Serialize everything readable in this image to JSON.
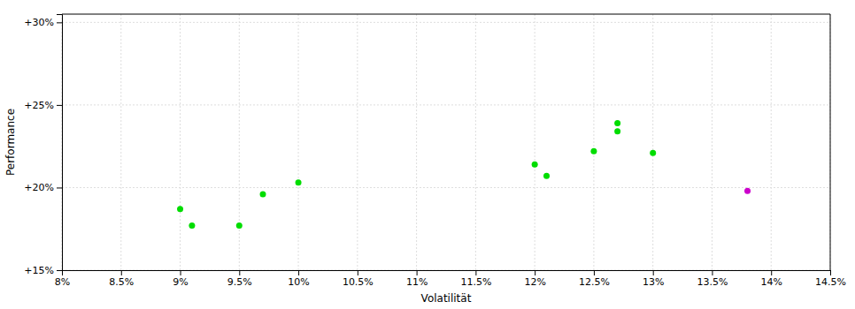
{
  "chart_data": {
    "type": "scatter",
    "xlabel": "Volatilität",
    "ylabel": "Performance",
    "xlim": [
      0.08,
      0.145
    ],
    "ylim": [
      0.15,
      0.305
    ],
    "xticks": [
      {
        "value": 0.08,
        "label": "8%"
      },
      {
        "value": 0.085,
        "label": "8.5%"
      },
      {
        "value": 0.09,
        "label": "9%"
      },
      {
        "value": 0.095,
        "label": "9.5%"
      },
      {
        "value": 0.1,
        "label": "10%"
      },
      {
        "value": 0.105,
        "label": "10.5%"
      },
      {
        "value": 0.11,
        "label": "11%"
      },
      {
        "value": 0.115,
        "label": "11.5%"
      },
      {
        "value": 0.12,
        "label": "12%"
      },
      {
        "value": 0.125,
        "label": "12.5%"
      },
      {
        "value": 0.13,
        "label": "13%"
      },
      {
        "value": 0.135,
        "label": "13.5%"
      },
      {
        "value": 0.14,
        "label": "14%"
      },
      {
        "value": 0.145,
        "label": "14.5%"
      }
    ],
    "yticks": [
      {
        "value": 0.15,
        "label": "+15%"
      },
      {
        "value": 0.2,
        "label": "+20%"
      },
      {
        "value": 0.25,
        "label": "+25%"
      },
      {
        "value": 0.3,
        "label": "+30%"
      }
    ],
    "grid": true,
    "series": [
      {
        "color": "#00dd00",
        "x": [
          0.09,
          0.091,
          0.095,
          0.097,
          0.1,
          0.12,
          0.121,
          0.125,
          0.127,
          0.127,
          0.13
        ],
        "values": [
          0.187,
          0.177,
          0.177,
          0.196,
          0.203,
          0.214,
          0.207,
          0.222,
          0.239,
          0.234,
          0.221
        ]
      },
      {
        "color": "#cc00cc",
        "x": [
          0.138
        ],
        "values": [
          0.198
        ]
      }
    ]
  }
}
